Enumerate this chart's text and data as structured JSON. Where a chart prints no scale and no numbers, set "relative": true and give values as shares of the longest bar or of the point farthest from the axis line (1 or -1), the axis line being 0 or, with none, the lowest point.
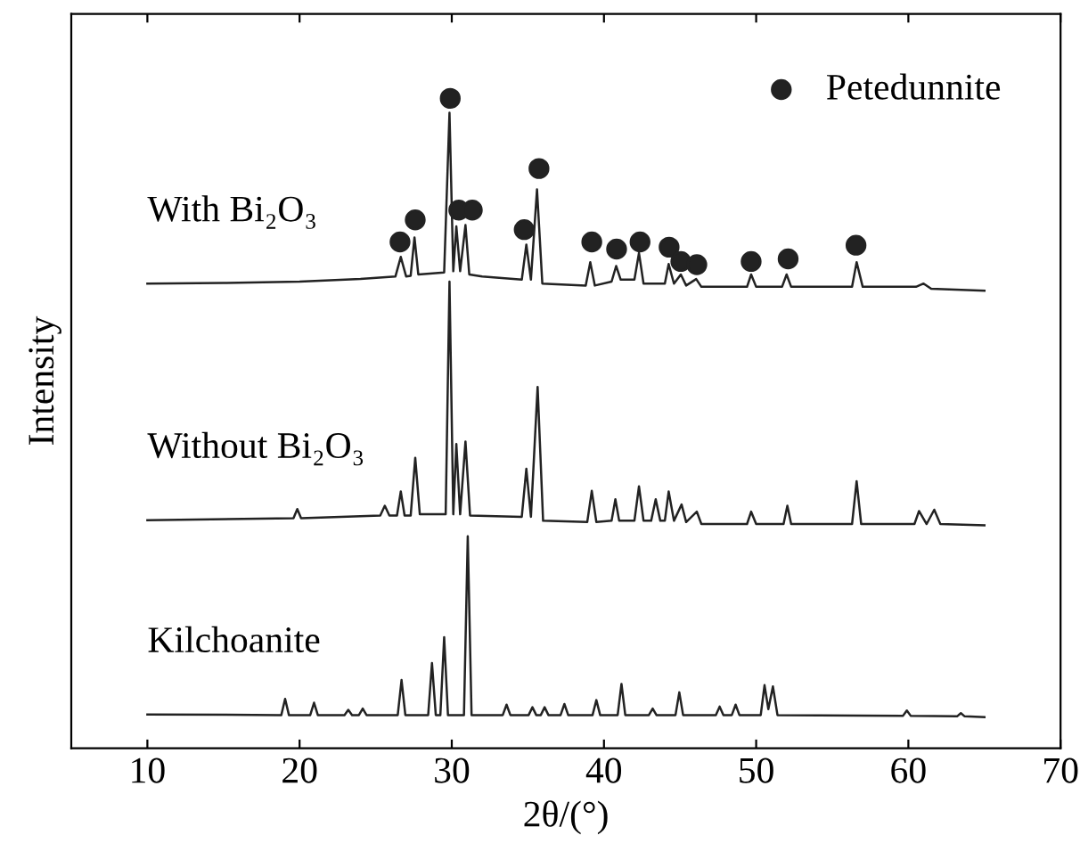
{
  "chart_data": {
    "type": "line",
    "relative": true,
    "xlabel": "2θ/(°)",
    "ylabel": "Intensity",
    "xlim": [
      5,
      70
    ],
    "xticks": [
      10,
      20,
      30,
      40,
      50,
      60,
      70
    ],
    "tick_labels": "x",
    "grid": false,
    "legend": "top right",
    "series": [
      {
        "name": "With Bi₂O₃",
        "color": "#222222",
        "x": [
          10,
          15,
          20,
          24,
          26.3,
          26.65,
          27.0,
          27.3,
          27.55,
          27.8,
          29.5,
          29.85,
          30.1,
          30.3,
          30.55,
          30.9,
          31.15,
          32,
          34.6,
          34.9,
          35.2,
          35.6,
          35.95,
          38.8,
          39.1,
          39.4,
          40.5,
          40.8,
          41.1,
          42.0,
          42.3,
          42.6,
          44.0,
          44.25,
          44.6,
          45.05,
          45.4,
          46.06,
          46.4,
          49.4,
          49.67,
          50.0,
          51.7,
          52.0,
          52.3,
          56.3,
          56.6,
          57.0,
          60.5,
          61,
          61.5,
          65
        ],
        "values": [
          0.715,
          0.716,
          0.718,
          0.722,
          0.726,
          0.756,
          0.726,
          0.727,
          0.786,
          0.729,
          0.732,
          0.978,
          0.734,
          0.803,
          0.734,
          0.805,
          0.729,
          0.726,
          0.721,
          0.775,
          0.721,
          0.86,
          0.715,
          0.712,
          0.748,
          0.712,
          0.718,
          0.742,
          0.721,
          0.721,
          0.762,
          0.715,
          0.715,
          0.745,
          0.715,
          0.729,
          0.712,
          0.722,
          0.71,
          0.71,
          0.729,
          0.71,
          0.71,
          0.729,
          0.71,
          0.71,
          0.748,
          0.71,
          0.71,
          0.715,
          0.707,
          0.704
        ]
      },
      {
        "name": "Without Bi₂O₃",
        "color": "#222222",
        "x": [
          10,
          19.6,
          19.85,
          20.1,
          25.3,
          25.6,
          25.9,
          26.4,
          26.65,
          26.9,
          27.3,
          27.6,
          27.9,
          29.6,
          29.85,
          30.1,
          30.3,
          30.55,
          30.9,
          31.2,
          34.6,
          34.9,
          35.2,
          35.64,
          36.0,
          38.9,
          39.2,
          39.5,
          40.5,
          40.75,
          41.0,
          42.0,
          42.3,
          42.6,
          43.1,
          43.4,
          43.7,
          44.0,
          44.25,
          44.6,
          45.1,
          45.4,
          46.1,
          46.4,
          49.4,
          49.67,
          50.0,
          51.8,
          52.05,
          52.3,
          56.3,
          56.6,
          56.9,
          60.4,
          60.7,
          61.2,
          61.7,
          62.1,
          65
        ],
        "values": [
          0.351,
          0.354,
          0.368,
          0.354,
          0.358,
          0.373,
          0.358,
          0.358,
          0.395,
          0.358,
          0.358,
          0.447,
          0.36,
          0.36,
          0.718,
          0.36,
          0.468,
          0.36,
          0.472,
          0.358,
          0.356,
          0.43,
          0.356,
          0.556,
          0.35,
          0.348,
          0.396,
          0.348,
          0.35,
          0.383,
          0.35,
          0.35,
          0.403,
          0.35,
          0.35,
          0.383,
          0.35,
          0.35,
          0.395,
          0.35,
          0.375,
          0.348,
          0.364,
          0.345,
          0.345,
          0.364,
          0.345,
          0.345,
          0.373,
          0.345,
          0.345,
          0.411,
          0.345,
          0.345,
          0.365,
          0.345,
          0.367,
          0.345,
          0.343
        ]
      },
      {
        "name": "Kilchoanite",
        "color": "#222222",
        "x": [
          10,
          18.8,
          19.05,
          19.3,
          20.7,
          20.95,
          21.2,
          22.95,
          23.2,
          23.45,
          23.9,
          24.15,
          24.4,
          26.45,
          26.7,
          26.95,
          28.45,
          28.7,
          28.95,
          29.25,
          29.5,
          29.75,
          30.8,
          31.05,
          31.3,
          33.35,
          33.6,
          33.85,
          35.05,
          35.3,
          35.55,
          35.85,
          36.1,
          36.35,
          37.15,
          37.4,
          37.65,
          39.25,
          39.5,
          39.75,
          40.9,
          41.15,
          41.4,
          42.95,
          43.2,
          43.45,
          44.7,
          44.95,
          45.2,
          47.35,
          47.6,
          47.85,
          48.4,
          48.65,
          48.9,
          50.3,
          50.55,
          50.8,
          51.1,
          51.4,
          59.65,
          59.9,
          60.15,
          63.2,
          63.45,
          63.7,
          65
        ],
        "values": [
          0.052,
          0.051,
          0.076,
          0.051,
          0.051,
          0.07,
          0.051,
          0.051,
          0.059,
          0.051,
          0.051,
          0.061,
          0.051,
          0.051,
          0.105,
          0.051,
          0.051,
          0.131,
          0.051,
          0.051,
          0.171,
          0.051,
          0.051,
          0.326,
          0.051,
          0.051,
          0.067,
          0.051,
          0.051,
          0.063,
          0.051,
          0.051,
          0.063,
          0.051,
          0.051,
          0.068,
          0.051,
          0.051,
          0.074,
          0.051,
          0.051,
          0.099,
          0.051,
          0.051,
          0.061,
          0.051,
          0.051,
          0.086,
          0.051,
          0.051,
          0.064,
          0.051,
          0.051,
          0.067,
          0.051,
          0.051,
          0.097,
          0.06,
          0.095,
          0.051,
          0.05,
          0.058,
          0.05,
          0.049,
          0.054,
          0.049,
          0.048
        ]
      },
      {
        "type": "scatter",
        "name": "Petedunnite",
        "color": "#222222",
        "marker": "circle",
        "x": [
          26.6,
          27.6,
          29.9,
          30.46,
          31.35,
          34.76,
          35.73,
          39.2,
          40.83,
          42.37,
          44.28,
          45.05,
          46.1,
          49.67,
          52.1,
          56.56
        ],
        "values": [
          0.779,
          0.813,
          1.0,
          0.828,
          0.828,
          0.798,
          0.892,
          0.779,
          0.768,
          0.779,
          0.771,
          0.749,
          0.744,
          0.749,
          0.753,
          0.774
        ]
      }
    ]
  }
}
